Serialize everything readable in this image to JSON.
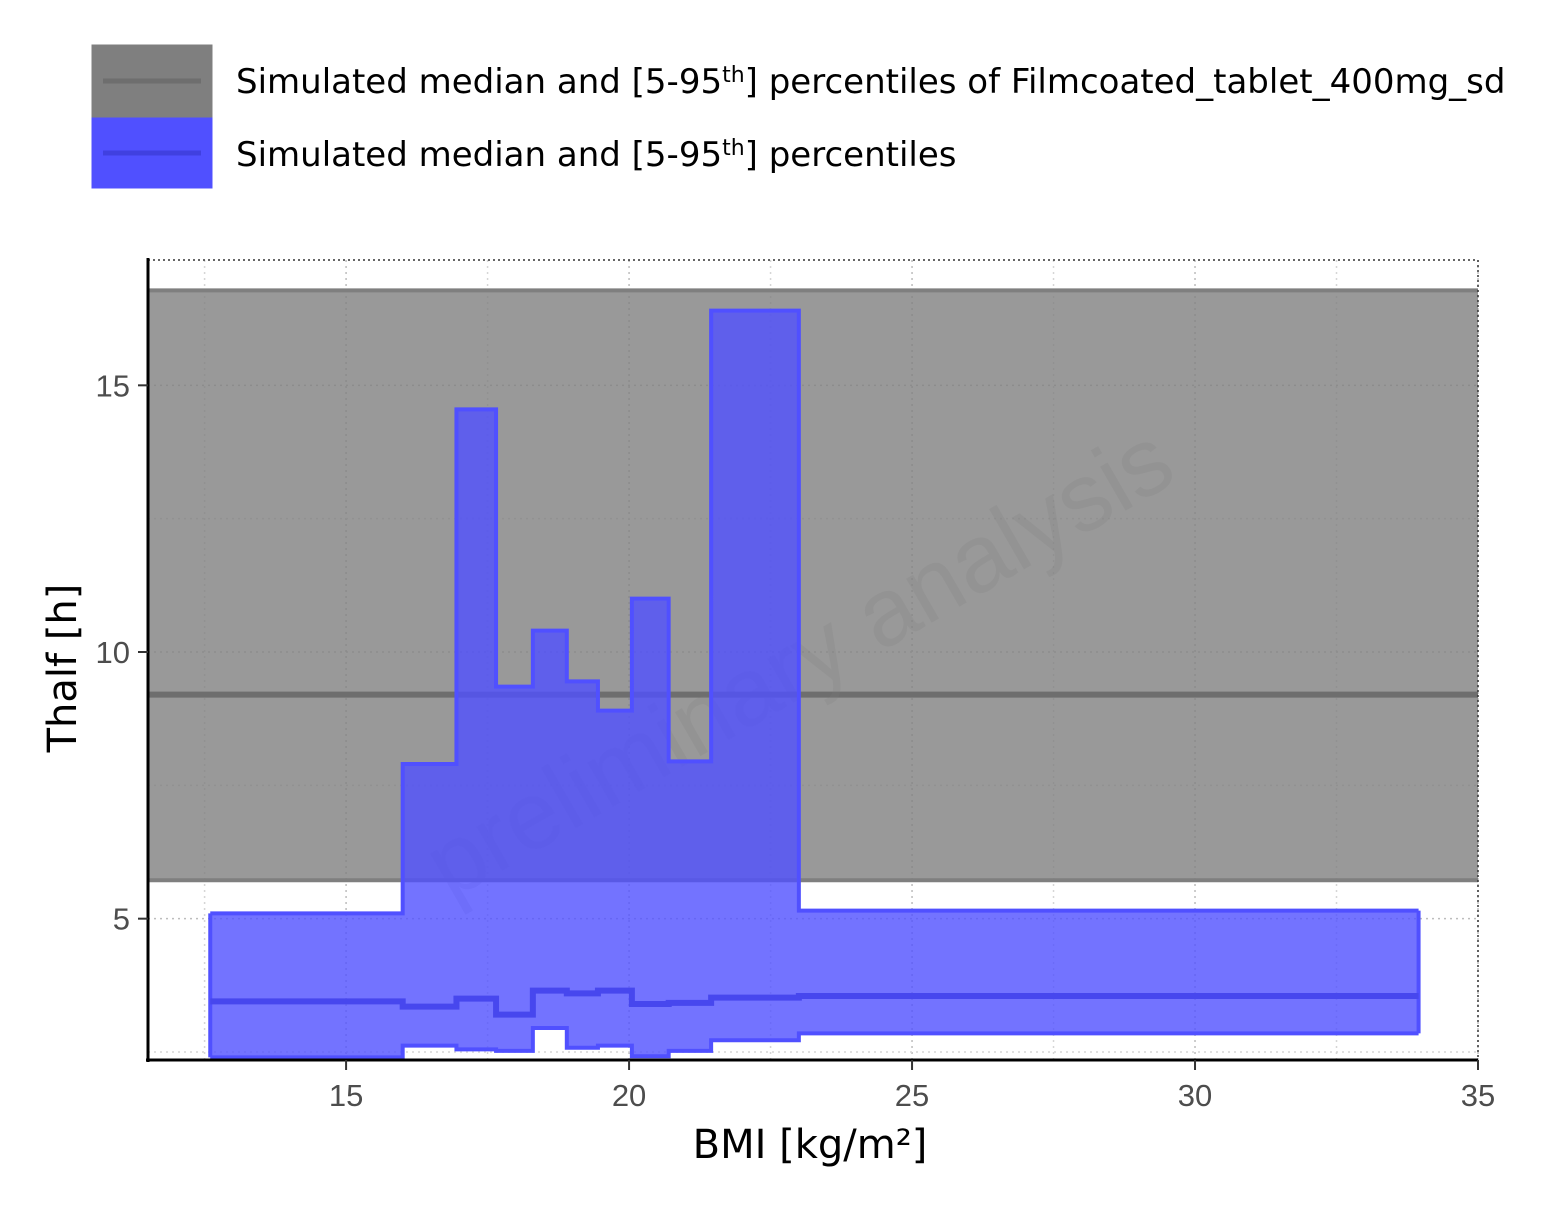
{
  "chart_data": {
    "type": "area",
    "xlabel": "BMI [kg/m²]",
    "ylabel": "Thalf [h]",
    "xlim": [
      11.5,
      35
    ],
    "ylim": [
      2.35,
      17.35
    ],
    "x_ticks": [
      15,
      20,
      25,
      30,
      35
    ],
    "y_ticks": [
      5,
      10,
      15
    ],
    "grid": true,
    "legend_position": "top",
    "watermark": "preliminary analysis",
    "legend": [
      {
        "text": "Simulated median and [5-95th] percentiles of Filmcoated_tablet_400mg_sd",
        "color": "#7f7f7f"
      },
      {
        "text": "Simulated median and [5-95th] percentiles",
        "color": "#5050ff"
      }
    ],
    "reference": {
      "name": "Simulated median and [5-95th] percentiles of Filmcoated_tablet_400mg_sd",
      "color": "#7f7f7f",
      "median": 9.2,
      "p5": 5.72,
      "p95": 16.78
    },
    "series": [
      {
        "name": "Simulated median and [5-95th] percentiles",
        "color": "#5050ff",
        "bins": [
          {
            "x0": 12.6,
            "x1": 16.0,
            "median": 3.45,
            "p5": 2.4,
            "p95": 5.1
          },
          {
            "x0": 16.0,
            "x1": 16.95,
            "median": 3.35,
            "p5": 2.62,
            "p95": 7.9
          },
          {
            "x0": 16.95,
            "x1": 17.65,
            "median": 3.5,
            "p5": 2.55,
            "p95": 14.55
          },
          {
            "x0": 17.65,
            "x1": 18.3,
            "median": 3.2,
            "p5": 2.52,
            "p95": 9.35
          },
          {
            "x0": 18.3,
            "x1": 18.9,
            "median": 3.65,
            "p5": 2.95,
            "p95": 10.4
          },
          {
            "x0": 18.9,
            "x1": 19.45,
            "median": 3.6,
            "p5": 2.58,
            "p95": 9.45
          },
          {
            "x0": 19.45,
            "x1": 20.05,
            "median": 3.65,
            "p5": 2.62,
            "p95": 8.9
          },
          {
            "x0": 20.05,
            "x1": 20.7,
            "median": 3.4,
            "p5": 2.42,
            "p95": 11.0
          },
          {
            "x0": 20.7,
            "x1": 21.45,
            "median": 3.42,
            "p5": 2.52,
            "p95": 7.95
          },
          {
            "x0": 21.45,
            "x1": 23.0,
            "median": 3.52,
            "p5": 2.72,
            "p95": 16.4
          },
          {
            "x0": 23.0,
            "x1": 33.95,
            "median": 3.55,
            "p5": 2.85,
            "p95": 5.15
          }
        ]
      }
    ]
  }
}
